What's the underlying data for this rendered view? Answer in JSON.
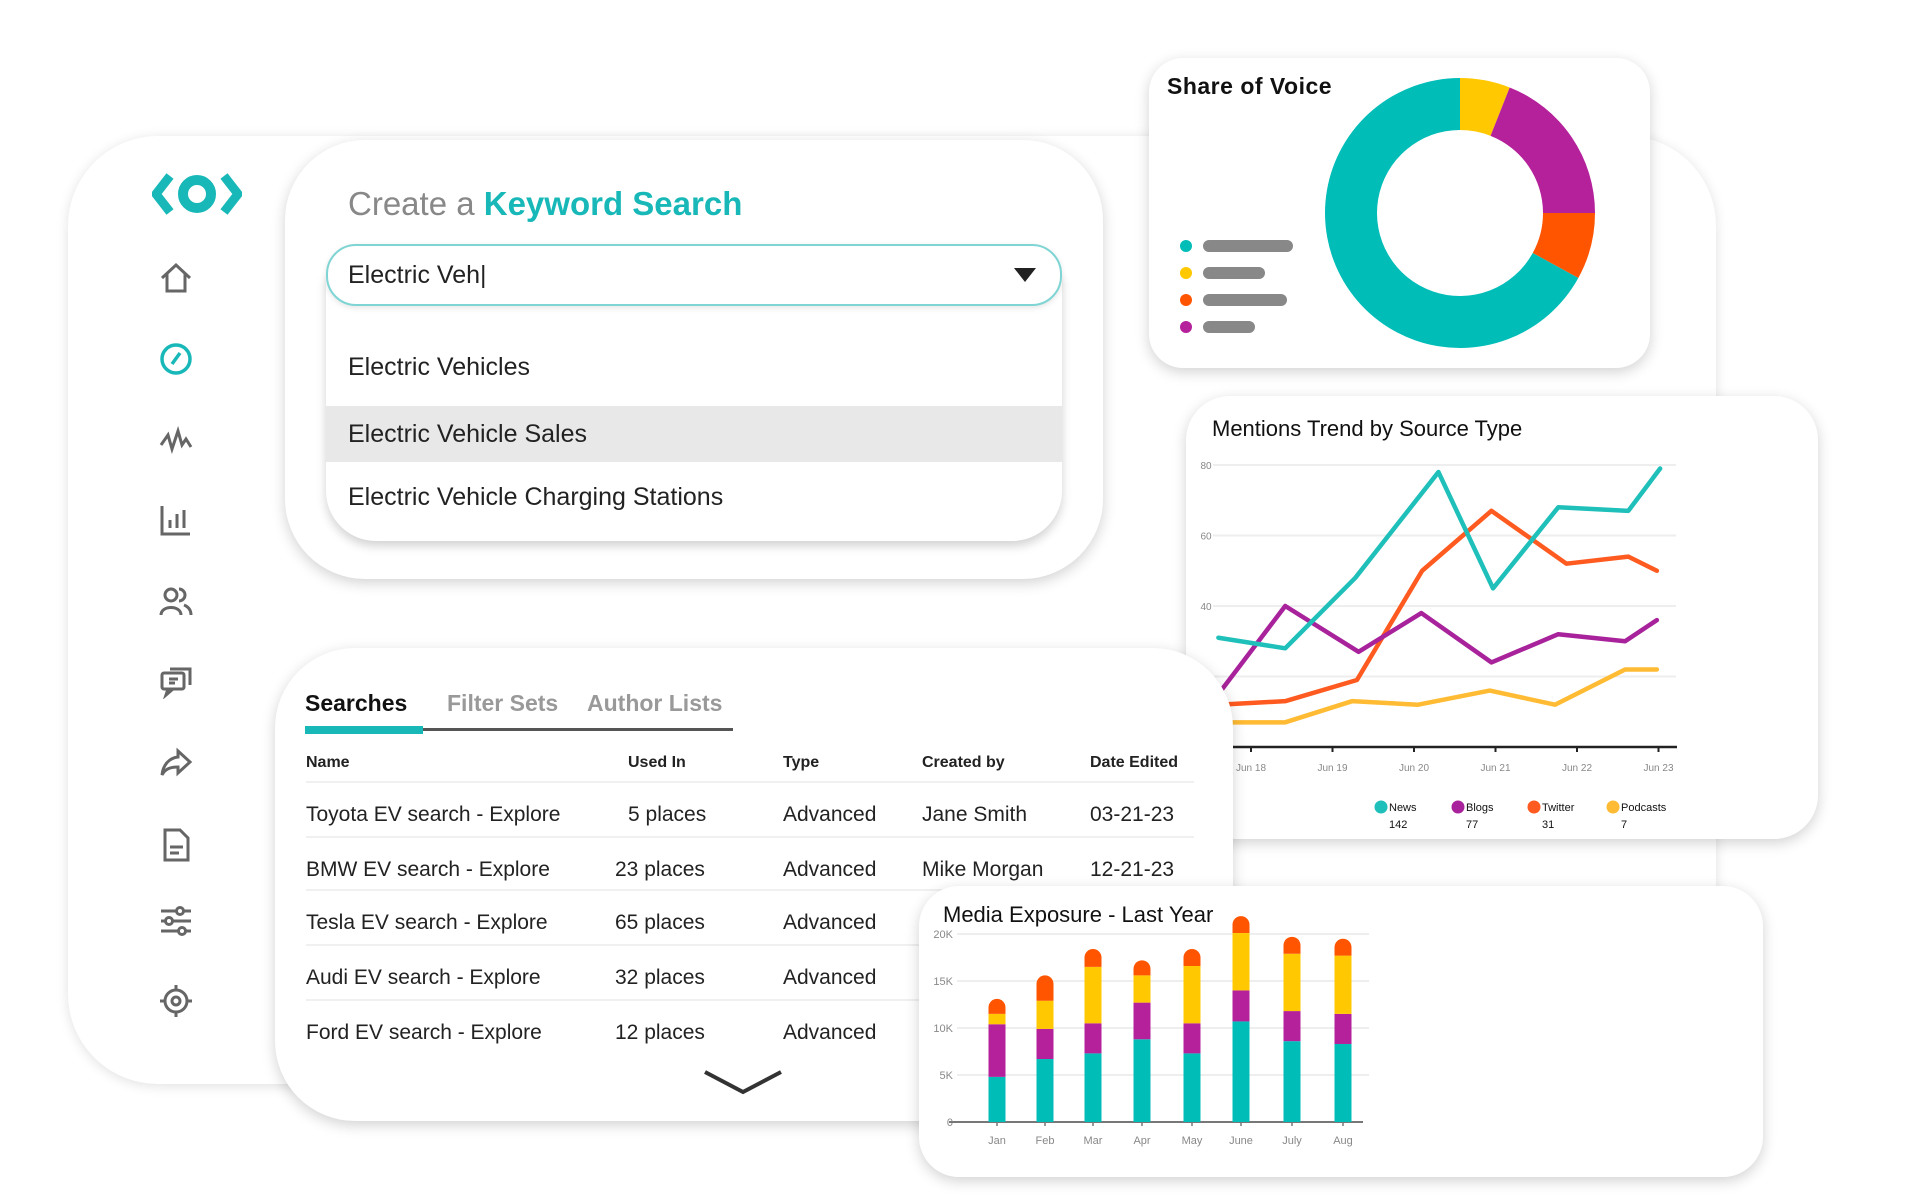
{
  "sidebar": {
    "logo": "brand-logo",
    "items": [
      {
        "icon": "home-icon"
      },
      {
        "icon": "compass-icon",
        "active": true
      },
      {
        "icon": "pulse-icon"
      },
      {
        "icon": "bar-chart-icon"
      },
      {
        "icon": "users-icon"
      },
      {
        "icon": "chat-icon"
      },
      {
        "icon": "share-icon"
      },
      {
        "icon": "document-icon"
      },
      {
        "icon": "sliders-icon"
      },
      {
        "icon": "gear-icon"
      }
    ]
  },
  "keyword_search": {
    "title_prefix": "Create a",
    "title_highlight": "Keyword Search",
    "input_value": "Electric Veh|",
    "options": [
      "Electric Vehicles",
      "Electric Vehicle Sales",
      "Electric Vehicle Charging Stations"
    ],
    "highlighted_option": 1
  },
  "searches": {
    "tabs": [
      "Searches",
      "Filter Sets",
      "Author Lists"
    ],
    "active_tab": 0,
    "columns": [
      "Name",
      "Used In",
      "Type",
      "Created by",
      "Date Edited"
    ],
    "rows": [
      [
        "Toyota EV search - Explore",
        "5 places",
        "Advanced",
        "Jane Smith",
        "03-21-23"
      ],
      [
        "BMW EV search - Explore",
        "23 places",
        "Advanced",
        "Mike Morgan",
        "12-21-23"
      ],
      [
        "Tesla EV search - Explore",
        "65 places",
        "Advanced",
        "",
        ""
      ],
      [
        "Audi EV search - Explore",
        "32 places",
        "Advanced",
        "",
        ""
      ],
      [
        "Ford EV search - Explore",
        "12 places",
        "Advanced",
        "",
        ""
      ]
    ]
  },
  "colors": {
    "teal": "#00bdb8",
    "purple": "#b5209b",
    "orange": "#ff5500",
    "yellow": "#ffc800",
    "accent": "#19b8b8"
  },
  "chart_data": [
    {
      "type": "pie",
      "variant": "donut",
      "title": "Share of Voice",
      "slices": [
        {
          "value": 6,
          "color": "#ffc800"
        },
        {
          "value": 19,
          "color": "#b5209b"
        },
        {
          "value": 8,
          "color": "#ff5500"
        },
        {
          "value": 67,
          "color": "#00bdb8"
        }
      ],
      "legend": "left",
      "legend_labels": "redacted-bars"
    },
    {
      "type": "line",
      "title": "Mentions Trend by Source Type",
      "xlabel": "",
      "ylabel": "",
      "x_ticks": [
        "Jun 18",
        "Jun 19",
        "Jun 20",
        "Jun 21",
        "Jun 22",
        "Jun 23"
      ],
      "y_ticks": [
        "80",
        "60",
        "40"
      ],
      "ylim": [
        0,
        80
      ],
      "grid": true,
      "legend": "bottom",
      "x_unit": "day of June",
      "series": [
        {
          "name": "News",
          "total": "142",
          "color": "#1fbfba",
          "x": [
            17.6,
            18.42,
            19.28,
            20.3,
            20.97,
            21.77,
            22.63,
            23.02
          ],
          "y": [
            31,
            28,
            48,
            78,
            45,
            68,
            67,
            79
          ]
        },
        {
          "name": "Blogs",
          "total": "77",
          "color": "#a8239b",
          "x": [
            17.6,
            18.42,
            19.32,
            20.09,
            20.95,
            21.77,
            22.59,
            22.98
          ],
          "y": [
            15,
            40,
            27,
            38,
            24,
            32,
            30,
            36
          ]
        },
        {
          "name": "Twitter",
          "total": "31",
          "color": "#ff5a1f",
          "x": [
            17.6,
            18.42,
            19.3,
            20.1,
            20.95,
            21.87,
            22.63,
            22.98
          ],
          "y": [
            12,
            13,
            19,
            50,
            67,
            52,
            54,
            50
          ]
        },
        {
          "name": "Podcasts",
          "total": "7",
          "color": "#ffbb33",
          "x": [
            17.6,
            18.42,
            19.24,
            20.05,
            20.93,
            21.73,
            22.59,
            22.98
          ],
          "y": [
            7,
            7,
            13,
            12,
            16,
            12,
            22,
            22
          ]
        }
      ]
    },
    {
      "type": "bar",
      "stacked": true,
      "title": "Media Exposure - Last Year",
      "xlabel": "",
      "ylabel": "",
      "categories": [
        "Jan",
        "Feb",
        "Mar",
        "Apr",
        "May",
        "June",
        "July",
        "Aug"
      ],
      "y_ticks": [
        "20K",
        "15K",
        "10K",
        "5K",
        "0"
      ],
      "ylim": [
        0,
        20000
      ],
      "grid": true,
      "series": [
        {
          "color": "#00bdb8",
          "values": [
            4800,
            6700,
            7300,
            8800,
            7300,
            10700,
            8600,
            8300
          ]
        },
        {
          "color": "#b5209b",
          "values": [
            5600,
            3200,
            3200,
            3900,
            3200,
            3300,
            3200,
            3200
          ]
        },
        {
          "color": "#ffc800",
          "values": [
            1100,
            3000,
            6000,
            2900,
            6100,
            6100,
            6100,
            6200
          ]
        },
        {
          "color": "#ff5500",
          "values": [
            1600,
            2700,
            1900,
            1600,
            1800,
            1800,
            1800,
            1800
          ]
        }
      ]
    }
  ]
}
